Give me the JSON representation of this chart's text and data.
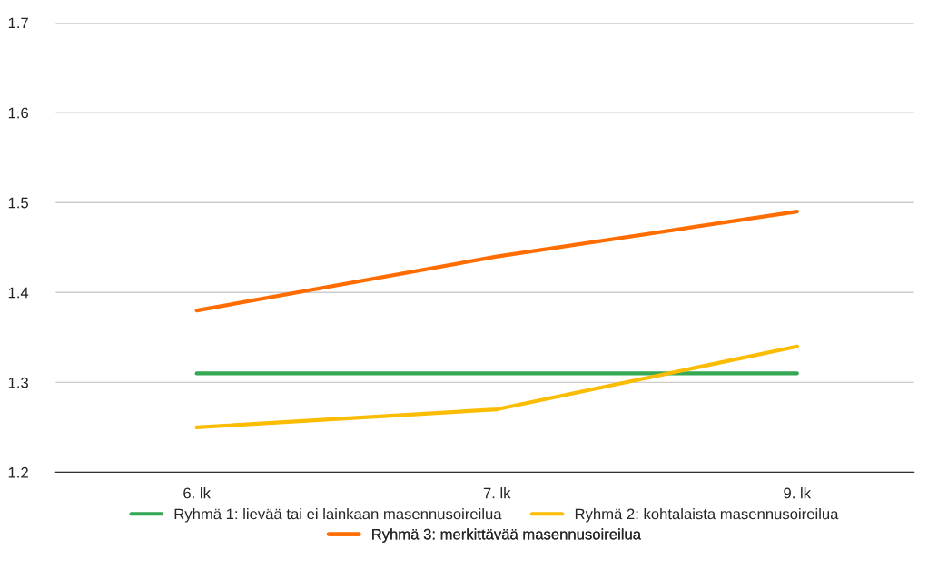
{
  "chart_data": {
    "type": "line",
    "categories": [
      "6. lk",
      "7. lk",
      "9. lk"
    ],
    "series": [
      {
        "name": "Ryhmä 1: lievää tai ei lainkaan masennusoireilua",
        "color": "#34a853",
        "values": [
          1.31,
          1.31,
          1.31
        ]
      },
      {
        "name": "Ryhmä 2: kohtalaista masennusoireilua",
        "color": "#fbbc04",
        "values": [
          1.25,
          1.27,
          1.34
        ]
      },
      {
        "name": "Ryhmä 3: merkittävää masennusoireilua",
        "color": "#ff6d01",
        "values": [
          1.38,
          1.44,
          1.49
        ]
      }
    ],
    "ylim": [
      1.2,
      1.7
    ],
    "yticks": [
      1.2,
      1.3,
      1.4,
      1.5,
      1.6,
      1.7
    ],
    "grid": "y",
    "legend": "bottom",
    "marker": "none",
    "line_style": "solid"
  }
}
